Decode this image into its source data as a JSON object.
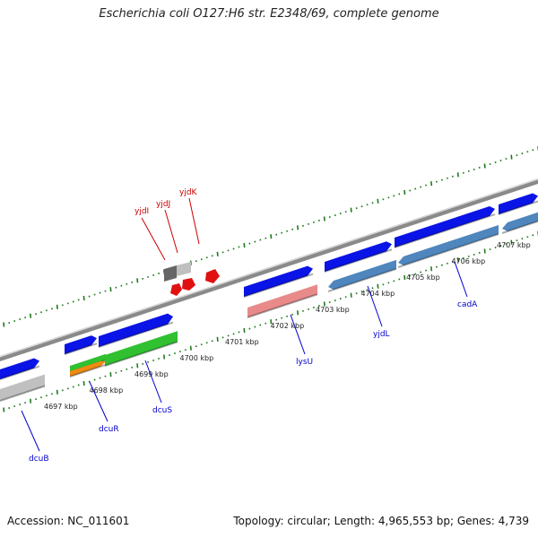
{
  "title": "Escherichia coli O127:H6 str. E2348/69, complete genome",
  "footer": {
    "accession": "Accession: NC_011601",
    "summary": "Topology: circular; Length: 4,965,553 bp; Genes: 4,739"
  },
  "colors": {
    "backbone": "#8a8a8a",
    "tick": "#1f7a1f",
    "cds": "#0a14e6",
    "cds_alt": "#4f86bd",
    "rna_pink": "#e88a8a",
    "green": "#30c030",
    "orange": "#f08a10",
    "grey": "#c0c0c0",
    "dark_grey": "#666666",
    "red": "#e01010",
    "label_blue": "#0000cc",
    "label_red": "#cc0000"
  },
  "ticks": [
    {
      "label": "4697 kbp"
    },
    {
      "label": "4698 kbp"
    },
    {
      "label": "4699 kbp"
    },
    {
      "label": "4700 kbp"
    },
    {
      "label": "4701 kbp"
    },
    {
      "label": "4702 kbp"
    },
    {
      "label": "4703 kbp"
    },
    {
      "label": "4704 kbp"
    },
    {
      "label": "4705 kbp"
    },
    {
      "label": "4706 kbp"
    },
    {
      "label": "4707 kbp"
    }
  ],
  "genes": [
    {
      "name": "dcuB",
      "color": "label_blue"
    },
    {
      "name": "dcuR",
      "color": "label_blue"
    },
    {
      "name": "dcuS",
      "color": "label_blue"
    },
    {
      "name": "lysU",
      "color": "label_blue"
    },
    {
      "name": "yjdL",
      "color": "label_blue"
    },
    {
      "name": "cadA",
      "color": "label_blue"
    },
    {
      "name": "yjdI",
      "color": "label_red"
    },
    {
      "name": "yjdJ",
      "color": "label_red"
    },
    {
      "name": "yjdK",
      "color": "label_red"
    }
  ]
}
